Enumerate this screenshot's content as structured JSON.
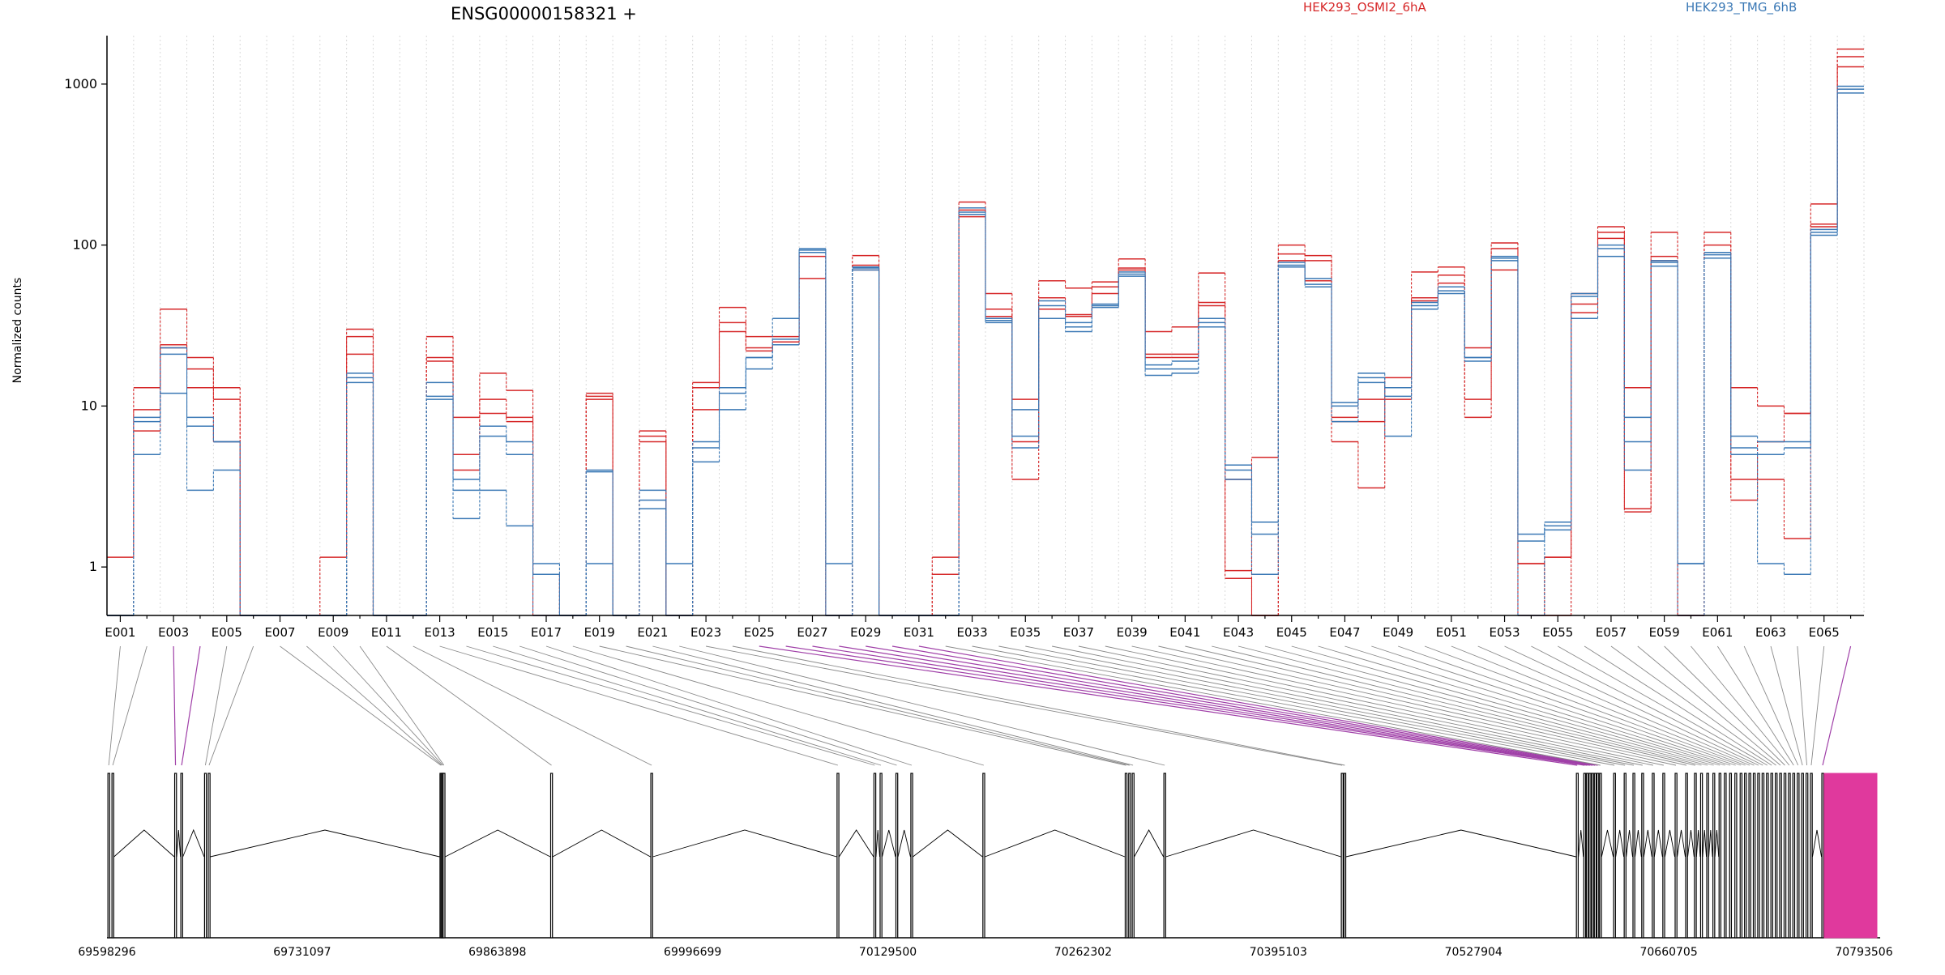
{
  "chart_data": {
    "type": "line",
    "title": "ENSG00000158321 +",
    "ylabel": "Normalized counts",
    "xlabel": "",
    "yscale": "log",
    "ylim": [
      0.5,
      2000
    ],
    "y_ticks": [
      1,
      10,
      100,
      1000
    ],
    "y_tick_labels": [
      "1",
      "10",
      "100",
      "1000"
    ],
    "grid": "vertical-dotted",
    "legend": {
      "placement": "top",
      "entries": [
        {
          "label": "HEK293_OSMI2_6hA",
          "color": "#d62728"
        },
        {
          "label": "HEK293_TMG_6hB",
          "color": "#3a78b5"
        }
      ]
    },
    "categories": [
      "E001",
      "E002",
      "E003",
      "E004",
      "E005",
      "E006",
      "E007",
      "E008",
      "E009",
      "E010",
      "E011",
      "E012",
      "E013",
      "E014",
      "E015",
      "E016",
      "E017",
      "E018",
      "E019",
      "E020",
      "E021",
      "E022",
      "E023",
      "E024",
      "E025",
      "E026",
      "E027",
      "E028",
      "E029",
      "E030",
      "E031",
      "E032",
      "E033",
      "E034",
      "E035",
      "E036",
      "E037",
      "E038",
      "E039",
      "E040",
      "E041",
      "E042",
      "E043",
      "E044",
      "E045",
      "E046",
      "E047",
      "E048",
      "E049",
      "E050",
      "E051",
      "E052",
      "E053",
      "E054",
      "E055",
      "E056",
      "E057",
      "E058",
      "E059",
      "E060",
      "E061",
      "E062",
      "E063",
      "E064",
      "E065",
      "E066"
    ],
    "x_tick_labels": [
      "E001",
      "E003",
      "E005",
      "E007",
      "E009",
      "E011",
      "E013",
      "E015",
      "E017",
      "E019",
      "E021",
      "E023",
      "E025",
      "E027",
      "E029",
      "E031",
      "E033",
      "E035",
      "E037",
      "E039",
      "E041",
      "E043",
      "E045",
      "E047",
      "E049",
      "E051",
      "E053",
      "E055",
      "E057",
      "E059",
      "E061",
      "E063",
      "E065"
    ],
    "series": [
      {
        "group": "HEK293_OSMI2_6hA",
        "values": [
          1.15,
          13,
          40,
          20,
          13,
          0.5,
          0.5,
          0.5,
          1.15,
          30,
          0.5,
          0.5,
          27,
          8.5,
          16,
          12.5,
          0.5,
          0.5,
          12,
          0.5,
          7,
          0.5,
          14,
          41,
          27,
          27,
          62,
          0.5,
          86,
          0.5,
          0.5,
          1.15,
          185,
          50,
          11,
          60,
          54,
          59,
          82,
          29,
          31,
          67,
          0.95,
          4.8,
          100,
          86,
          8.5,
          11,
          15,
          68,
          73,
          23,
          103,
          0.5,
          1.15,
          50,
          130,
          13,
          120,
          0.5,
          120,
          13,
          10,
          9,
          180,
          1650
        ]
      },
      {
        "group": "HEK293_OSMI2_6hA",
        "values": [
          0.5,
          9.5,
          24,
          17,
          11,
          0.5,
          0.5,
          0.5,
          0.5,
          27,
          0.5,
          0.5,
          20,
          5,
          11,
          8.5,
          0.9,
          0.5,
          11.5,
          0.5,
          6.5,
          0.5,
          13,
          33,
          23,
          25,
          85,
          0.5,
          75,
          0.5,
          0.5,
          0.9,
          165,
          40,
          3.5,
          47,
          37,
          55,
          72,
          21,
          21,
          44,
          0.85,
          0.5,
          88,
          80,
          6,
          3.1,
          11,
          47,
          65,
          11,
          95,
          1.05,
          0.5,
          43,
          120,
          2.2,
          85,
          0.5,
          100,
          3.5,
          6,
          9,
          135,
          1480
        ]
      },
      {
        "group": "HEK293_OSMI2_6hA",
        "values": [
          0.5,
          7,
          23,
          13,
          6,
          0.5,
          0.5,
          0.5,
          0.5,
          21,
          0.5,
          0.5,
          19,
          4,
          9,
          8,
          0.9,
          0.5,
          11,
          0.5,
          6,
          0.5,
          9.5,
          29,
          22,
          24,
          90,
          0.5,
          70,
          0.5,
          0.5,
          0.5,
          150,
          36,
          6,
          40,
          36,
          50,
          70,
          20,
          20,
          42,
          3.5,
          0.5,
          80,
          60,
          8,
          8,
          13,
          45,
          58,
          8.5,
          70,
          1.05,
          1.15,
          38,
          110,
          2.3,
          80,
          0.5,
          90,
          2.6,
          3.5,
          1.5,
          130,
          1280
        ]
      },
      {
        "group": "HEK293_TMG_6hB",
        "values": [
          0.5,
          8.5,
          23,
          8.5,
          6,
          0.5,
          0.5,
          0.5,
          0.5,
          16,
          0.5,
          0.5,
          14,
          3,
          7.5,
          6,
          1.05,
          0.5,
          4,
          0.5,
          3,
          0.5,
          6,
          13,
          20,
          26,
          93,
          0.5,
          72,
          0.5,
          0.5,
          0.5,
          170,
          35,
          9.5,
          45,
          33,
          43,
          68,
          18,
          19,
          35,
          4.3,
          1.9,
          78,
          62,
          10.5,
          16,
          13,
          44,
          55,
          20,
          85,
          1.6,
          1.9,
          50,
          100,
          8.5,
          80,
          1.05,
          90,
          6.5,
          6,
          6,
          125,
          970
        ]
      },
      {
        "group": "HEK293_TMG_6hB",
        "values": [
          0.5,
          8,
          21,
          7.5,
          6,
          0.5,
          0.5,
          0.5,
          0.5,
          15,
          0.5,
          0.5,
          11.5,
          3.5,
          6.5,
          5,
          0.9,
          0.5,
          3.9,
          0.5,
          2.6,
          0.5,
          5.5,
          12,
          20,
          24,
          95,
          0.5,
          73,
          0.5,
          0.5,
          0.5,
          160,
          34,
          6.5,
          42,
          31,
          42,
          66,
          17,
          17,
          33,
          3.5,
          1.6,
          75,
          57,
          8,
          15,
          11.5,
          42,
          52,
          19,
          83,
          1.45,
          1.7,
          48,
          95,
          6,
          78,
          1.05,
          87,
          5.5,
          5,
          5.5,
          120,
          930
        ]
      },
      {
        "group": "HEK293_TMG_6hB",
        "values": [
          0.5,
          5,
          12,
          3,
          4,
          0.5,
          0.5,
          0.5,
          0.5,
          14,
          0.5,
          0.5,
          11,
          2,
          3,
          1.8,
          0.5,
          0.5,
          1.05,
          0.5,
          2.3,
          1.05,
          4.5,
          9.5,
          17,
          35,
          90,
          1.05,
          70,
          0.5,
          0.5,
          0.5,
          155,
          33,
          5.5,
          35,
          29,
          41,
          64,
          15.5,
          16,
          31,
          4,
          0.9,
          73,
          55,
          10,
          14,
          6.5,
          40,
          50,
          20,
          80,
          0.5,
          1.8,
          35,
          85,
          4,
          74,
          0.5,
          83,
          5,
          1.05,
          0.9,
          115,
          880
        ]
      }
    ],
    "transcript_panel": {
      "start_label": "69598296",
      "end_label": "70793506",
      "tick_labels": [
        "69598296",
        "69731097",
        "69863898",
        "69996699",
        "70129500",
        "70262302",
        "70395103",
        "70527904",
        "70660705",
        "70793506"
      ],
      "highlight_color": "#e0399d"
    }
  }
}
